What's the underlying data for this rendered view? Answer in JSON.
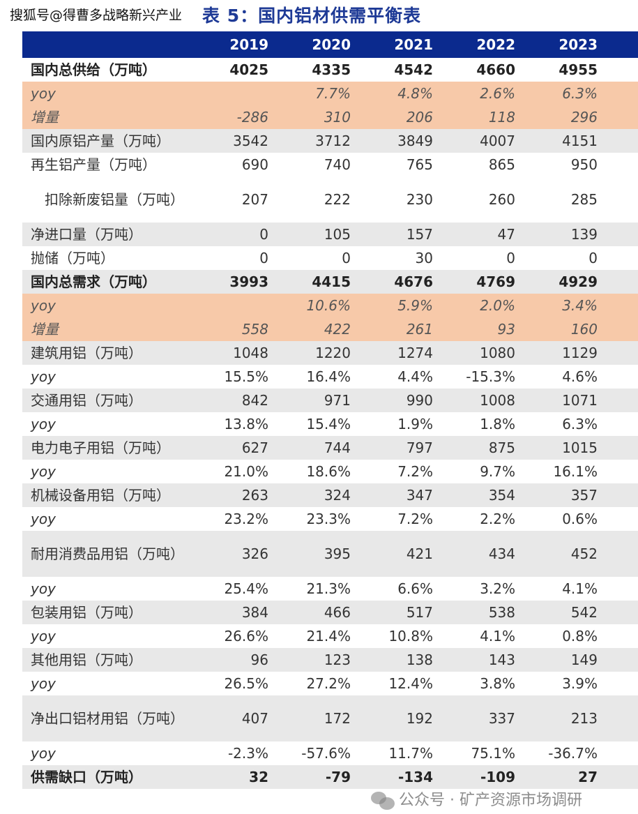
{
  "watermark_top": "搜狐号@得曹多战略新兴产业",
  "title": "表 5：国内铝材供需平衡表",
  "header": {
    "years": [
      "2019",
      "2020",
      "2021",
      "2022",
      "2023"
    ]
  },
  "rows": [
    {
      "label": "国内总供给（万吨）",
      "style": "white bold",
      "values": [
        "4025",
        "4335",
        "4542",
        "4660",
        "4955"
      ]
    },
    {
      "label": "yoy",
      "style": "peach",
      "values": [
        "",
        "7.7%",
        "4.8%",
        "2.6%",
        "6.3%"
      ]
    },
    {
      "label": "增量",
      "style": "peach",
      "values": [
        "-286",
        "310",
        "206",
        "118",
        "296"
      ]
    },
    {
      "label": "国内原铝产量（万吨）",
      "style": "gray",
      "values": [
        "3542",
        "3712",
        "3849",
        "4007",
        "4151"
      ]
    },
    {
      "label": "再生铝产量（万吨）",
      "style": "white",
      "values": [
        "690",
        "740",
        "765",
        "865",
        "950"
      ]
    },
    {
      "label": "　扣除新废铝量（万吨）",
      "style": "white dbl",
      "values": [
        "207",
        "222",
        "230",
        "260",
        "285"
      ]
    },
    {
      "label": "净进口量（万吨）",
      "style": "gray",
      "values": [
        "0",
        "105",
        "157",
        "47",
        "139"
      ]
    },
    {
      "label": "抛储（万吨）",
      "style": "white",
      "values": [
        "0",
        "0",
        "30",
        "0",
        "0"
      ]
    },
    {
      "label": "国内总需求（万吨）",
      "style": "gray bold",
      "values": [
        "3993",
        "4415",
        "4676",
        "4769",
        "4929"
      ]
    },
    {
      "label": "yoy",
      "style": "peach",
      "values": [
        "",
        "10.6%",
        "5.9%",
        "2.0%",
        "3.4%"
      ]
    },
    {
      "label": "增量",
      "style": "peach",
      "values": [
        "558",
        "422",
        "261",
        "93",
        "160"
      ]
    },
    {
      "label": "建筑用铝（万吨）",
      "style": "gray",
      "values": [
        "1048",
        "1220",
        "1274",
        "1080",
        "1129"
      ]
    },
    {
      "label": "yoy",
      "style": "white yoy",
      "values": [
        "15.5%",
        "16.4%",
        "4.4%",
        "-15.3%",
        "4.6%"
      ]
    },
    {
      "label": "交通用铝（万吨）",
      "style": "gray",
      "values": [
        "842",
        "971",
        "990",
        "1008",
        "1071"
      ]
    },
    {
      "label": "yoy",
      "style": "white yoy",
      "values": [
        "13.8%",
        "15.4%",
        "1.9%",
        "1.8%",
        "6.3%"
      ]
    },
    {
      "label": "电力电子用铝（万吨）",
      "style": "gray",
      "values": [
        "627",
        "744",
        "797",
        "875",
        "1015"
      ]
    },
    {
      "label": "yoy",
      "style": "white yoy",
      "values": [
        "21.0%",
        "18.6%",
        "7.2%",
        "9.7%",
        "16.1%"
      ]
    },
    {
      "label": "机械设备用铝（万吨）",
      "style": "gray",
      "values": [
        "263",
        "324",
        "347",
        "354",
        "357"
      ]
    },
    {
      "label": "yoy",
      "style": "white yoy",
      "values": [
        "23.2%",
        "23.3%",
        "7.2%",
        "2.2%",
        "0.6%"
      ]
    },
    {
      "label": "耐用消费品用铝（万吨）",
      "style": "gray dbl",
      "values": [
        "326",
        "395",
        "421",
        "434",
        "452"
      ]
    },
    {
      "label": "yoy",
      "style": "white yoy",
      "values": [
        "25.4%",
        "21.3%",
        "6.6%",
        "3.2%",
        "4.1%"
      ]
    },
    {
      "label": "包装用铝（万吨）",
      "style": "gray",
      "values": [
        "384",
        "466",
        "517",
        "538",
        "542"
      ]
    },
    {
      "label": "yoy",
      "style": "white yoy",
      "values": [
        "26.6%",
        "21.4%",
        "10.8%",
        "4.1%",
        "0.8%"
      ]
    },
    {
      "label": "其他用铝（万吨）",
      "style": "gray",
      "values": [
        "96",
        "123",
        "138",
        "143",
        "149"
      ]
    },
    {
      "label": "yoy",
      "style": "white yoy",
      "values": [
        "26.5%",
        "27.2%",
        "12.4%",
        "3.8%",
        "3.9%"
      ]
    },
    {
      "label": "净出口铝材用铝（万吨）",
      "style": "gray dbl",
      "values": [
        "407",
        "172",
        "192",
        "337",
        "213"
      ]
    },
    {
      "label": "yoy",
      "style": "white yoy",
      "values": [
        "-2.3%",
        "-57.6%",
        "11.7%",
        "75.1%",
        "-36.7%"
      ]
    },
    {
      "label": "供需缺口（万吨）",
      "style": "gray bold",
      "values": [
        "32",
        "-79",
        "-134",
        "-109",
        "27"
      ]
    }
  ],
  "watermark_bottom": "公众号 · 矿产资源市场调研"
}
